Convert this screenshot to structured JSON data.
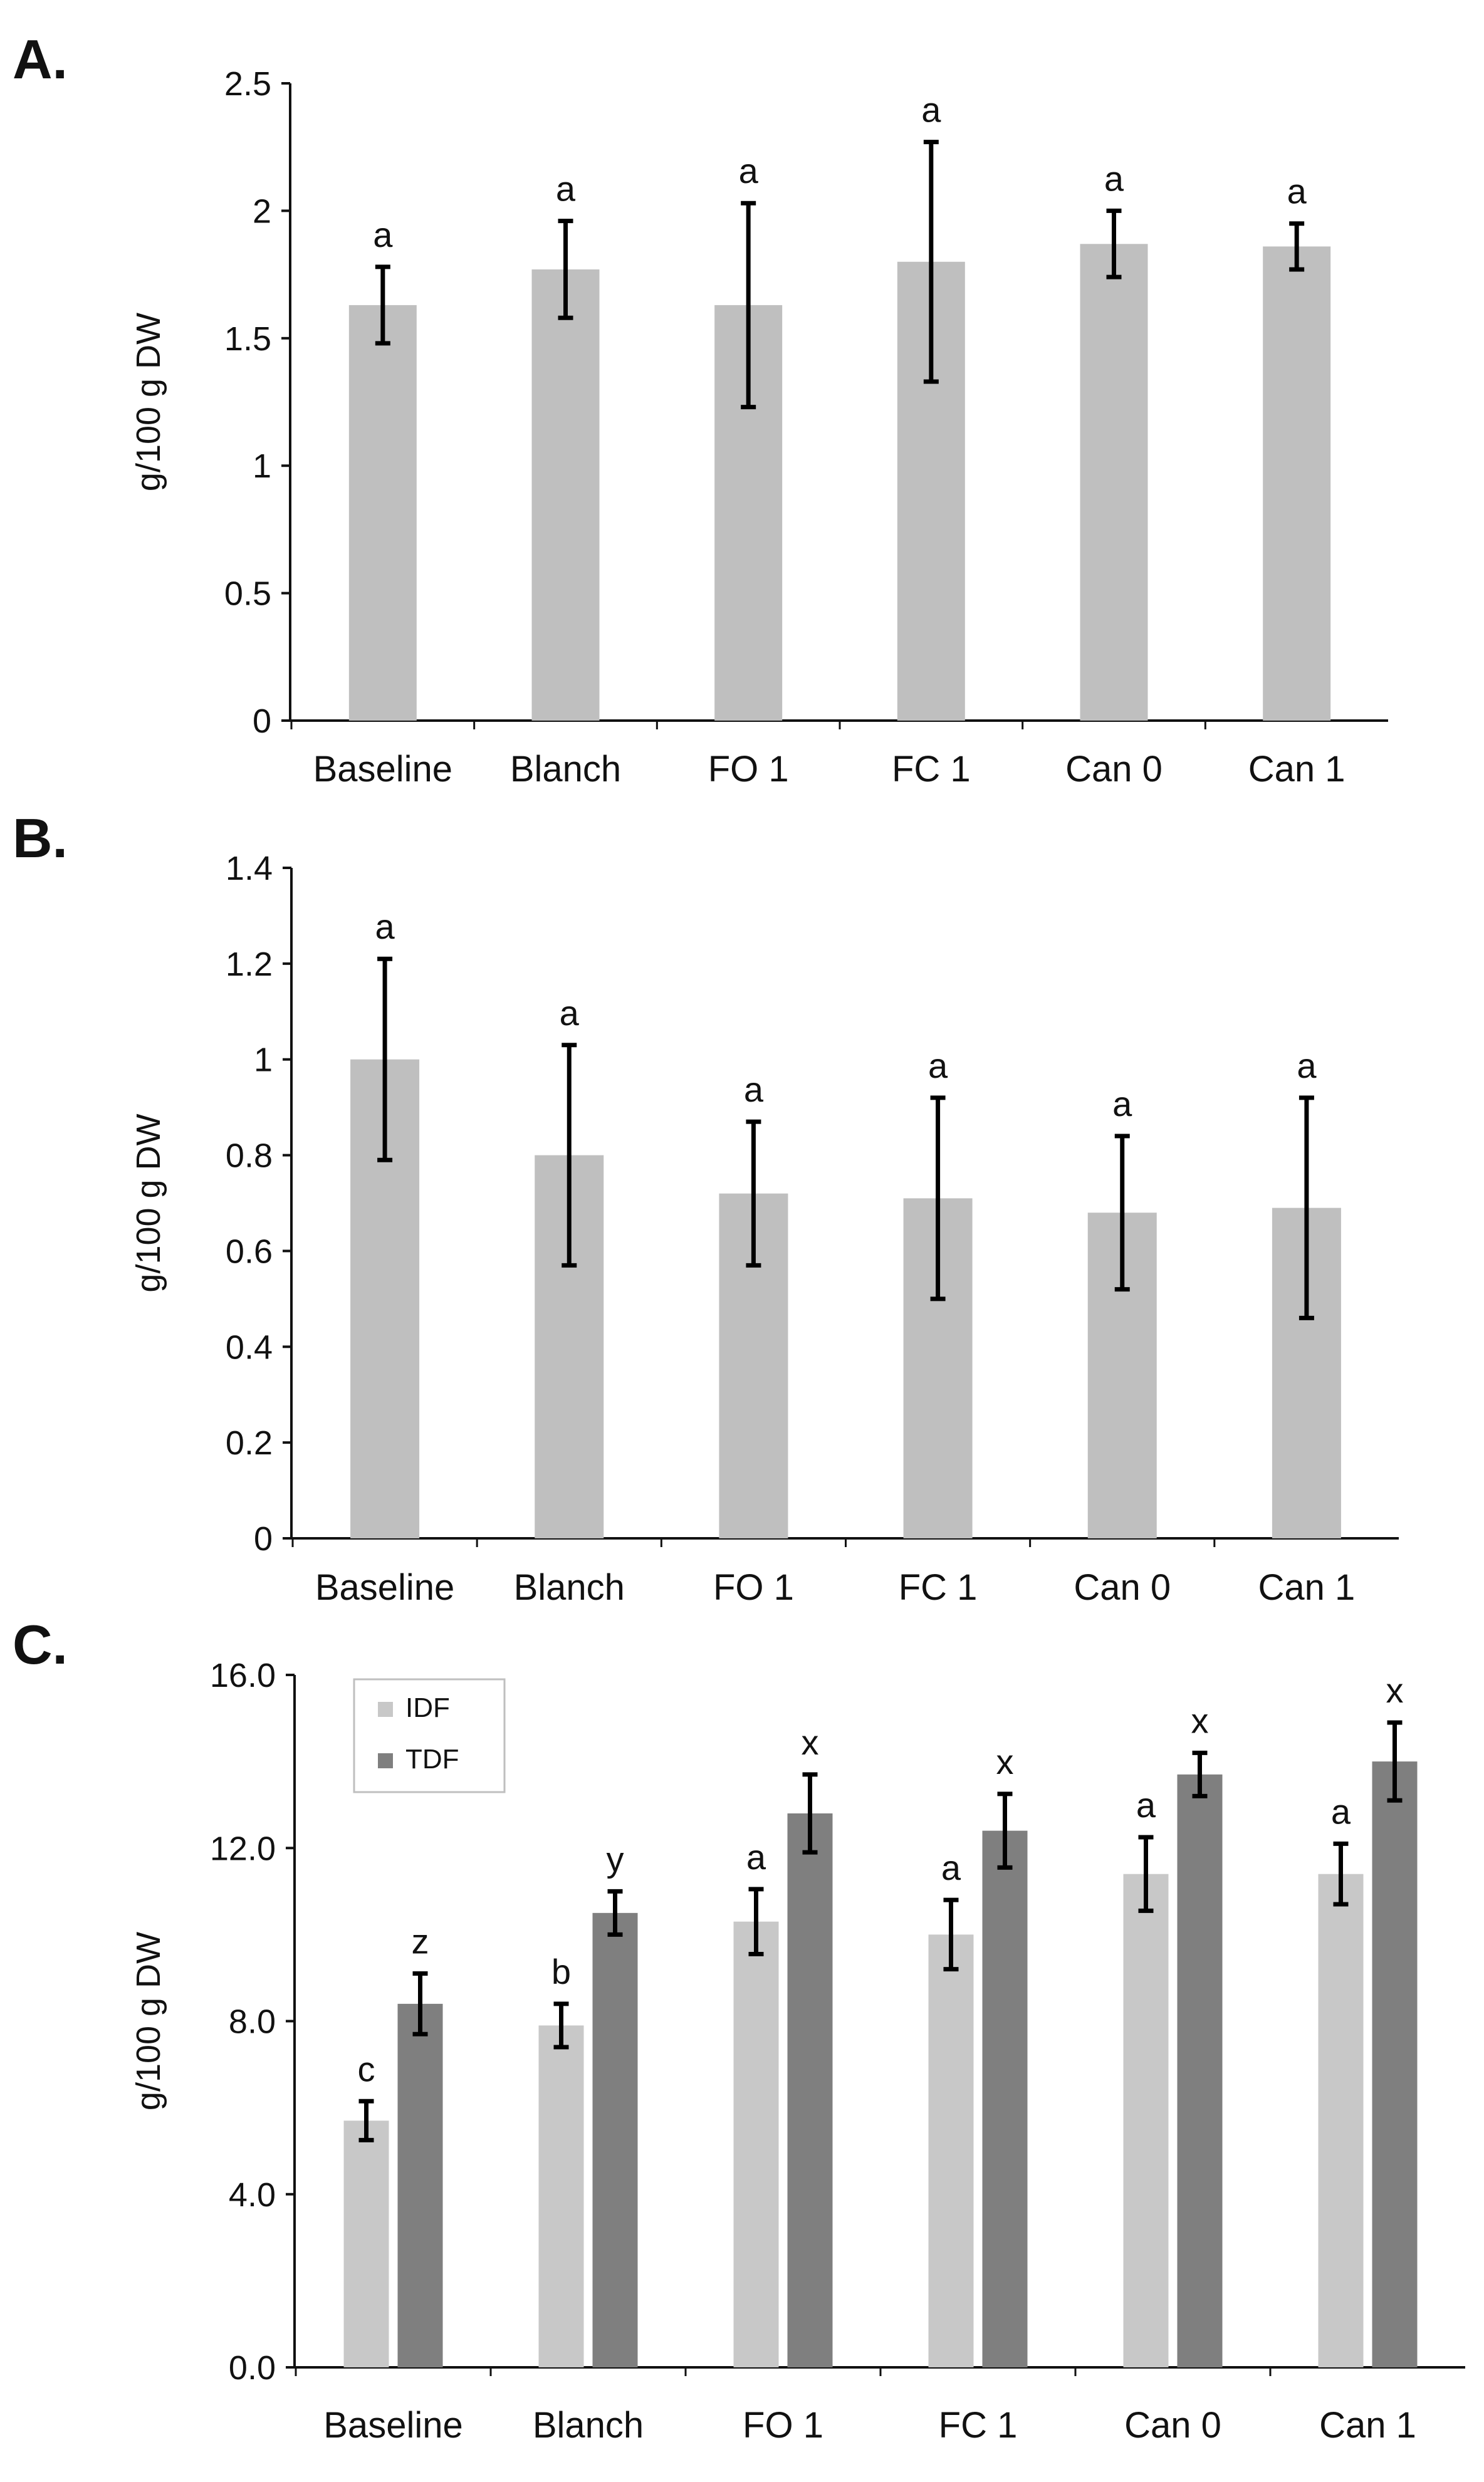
{
  "chart_data": [
    {
      "type": "bar",
      "panel": "A.",
      "title": "",
      "xlabel": "",
      "ylabel": "g/100 g DW",
      "ylim": [
        0,
        2.5
      ],
      "yticks": [
        "0",
        "0.5",
        "1",
        "1.5",
        "2",
        "2.5"
      ],
      "categories": [
        "Baseline",
        "Blanch",
        "FO 1",
        "FC 1",
        "Can 0",
        "Can 1"
      ],
      "series": [
        {
          "name": "",
          "color": "#bfbfbf",
          "values": [
            1.63,
            1.77,
            1.63,
            1.8,
            1.87,
            1.86
          ],
          "error": [
            0.15,
            0.19,
            0.4,
            0.47,
            0.13,
            0.09
          ],
          "letters": [
            "a",
            "a",
            "a",
            "a",
            "a",
            "a"
          ]
        }
      ],
      "legend": false,
      "grid": false
    },
    {
      "type": "bar",
      "panel": "B.",
      "title": "",
      "xlabel": "",
      "ylabel": "g/100 g DW",
      "ylim": [
        0,
        1.4
      ],
      "yticks": [
        "0",
        "0.2",
        "0.4",
        "0.6",
        "0.8",
        "1",
        "1.2",
        "1.4"
      ],
      "categories": [
        "Baseline",
        "Blanch",
        "FO 1",
        "FC 1",
        "Can 0",
        "Can 1"
      ],
      "series": [
        {
          "name": "",
          "color": "#bfbfbf",
          "values": [
            1.0,
            0.8,
            0.72,
            0.71,
            0.68,
            0.69
          ],
          "error": [
            0.21,
            0.23,
            0.15,
            0.21,
            0.16,
            0.23
          ],
          "letters": [
            "a",
            "a",
            "a",
            "a",
            "a",
            "a"
          ]
        }
      ],
      "legend": false,
      "grid": false
    },
    {
      "type": "bar",
      "panel": "C.",
      "title": "",
      "xlabel": "",
      "ylabel": "g/100 g DW",
      "ylim": [
        0,
        16
      ],
      "yticks": [
        "0.0",
        "4.0",
        "8.0",
        "12.0",
        "16.0"
      ],
      "categories": [
        "Baseline",
        "Blanch",
        "FO 1",
        "FC 1",
        "Can 0",
        "Can 1"
      ],
      "series": [
        {
          "name": "IDF",
          "color": "#c8c8c8",
          "values": [
            5.7,
            7.9,
            10.3,
            10.0,
            11.4,
            11.4
          ],
          "error": [
            0.45,
            0.5,
            0.75,
            0.8,
            0.85,
            0.7
          ],
          "letters": [
            "c",
            "b",
            "a",
            "a",
            "a",
            "a"
          ]
        },
        {
          "name": "TDF",
          "color": "#7f7f7f",
          "values": [
            8.4,
            10.5,
            12.8,
            12.4,
            13.7,
            14.0
          ],
          "error": [
            0.7,
            0.5,
            0.9,
            0.85,
            0.5,
            0.9
          ],
          "letters": [
            "z",
            "y",
            "x",
            "x",
            "x",
            "x"
          ]
        }
      ],
      "legend": true,
      "legend_position": "top-left",
      "grid": false
    }
  ]
}
